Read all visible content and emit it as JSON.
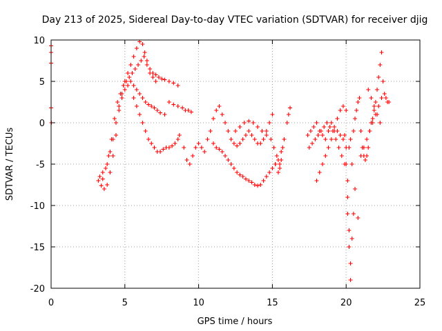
{
  "chart_data": {
    "type": "scatter",
    "title": "Day 213 of 2025, Sidereal Day-to-day VTEC variation (SDTVAR) for receiver djig",
    "xlabel": "GPS time / hours",
    "ylabel": "SDTVAR / TECUs",
    "xlim": [
      0,
      25
    ],
    "ylim": [
      -20,
      10
    ],
    "xticks": [
      0,
      5,
      10,
      15,
      20,
      25
    ],
    "yticks": [
      -20,
      -15,
      -10,
      -5,
      0,
      5,
      10
    ],
    "xtick_labels": [
      "0",
      "5",
      "10",
      "15",
      "20",
      "25"
    ],
    "ytick_labels": [
      "-20",
      "-15",
      "-10",
      "-5",
      "0",
      "5",
      "10"
    ],
    "grid": true,
    "marker": "+",
    "series_color": "#ff0000",
    "series": [
      {
        "name": "djig",
        "x": [
          0.0,
          0.0,
          0.0,
          0.0,
          0.02,
          3.2,
          3.4,
          3.6,
          3.8,
          4.0,
          4.2,
          4.4,
          4.6,
          4.8,
          5.0,
          5.2,
          5.4,
          5.6,
          5.8,
          6.0,
          6.2,
          6.35,
          6.5,
          6.7,
          6.9,
          7.1,
          7.3,
          7.5,
          7.7,
          8.0,
          8.3,
          8.6,
          3.3,
          3.5,
          3.7,
          3.9,
          4.1,
          4.3,
          4.5,
          4.7,
          4.9,
          5.1,
          5.3,
          5.5,
          5.7,
          5.9,
          6.1,
          6.3,
          6.5,
          6.7,
          6.9,
          7.1,
          3.5,
          3.8,
          4.0,
          4.2,
          4.4,
          4.6,
          4.8,
          5.0,
          5.2,
          5.4,
          5.6,
          5.8,
          6.0,
          6.2,
          6.4,
          6.6,
          6.8,
          7.0,
          7.2,
          7.4,
          7.7,
          8.0,
          8.3,
          8.6,
          8.9,
          9.1,
          9.3,
          9.5,
          5.6,
          5.8,
          6.0,
          6.2,
          6.4,
          6.6,
          6.8,
          7.0,
          7.2,
          7.4,
          7.6,
          7.8,
          8.0,
          8.2,
          8.4,
          8.6,
          8.7,
          9.0,
          9.2,
          9.4,
          9.6,
          9.8,
          10.0,
          10.2,
          10.4,
          10.6,
          10.8,
          11.0,
          11.2,
          11.4,
          11.6,
          11.8,
          12.0,
          12.2,
          12.4,
          12.6,
          12.8,
          13.0,
          13.2,
          13.4,
          13.6,
          13.8,
          14.0,
          14.2,
          14.4,
          14.6,
          14.8,
          15.0,
          15.2,
          15.4,
          15.5,
          15.6,
          15.7,
          15.8,
          11.0,
          11.2,
          11.4,
          11.6,
          11.8,
          12.0,
          12.2,
          12.4,
          12.6,
          12.8,
          13.0,
          13.2,
          13.4,
          13.6,
          13.8,
          14.0,
          14.2,
          14.4,
          14.6,
          14.8,
          15.0,
          15.2,
          15.4,
          15.6,
          15.8,
          16.0,
          16.1,
          16.2,
          12.5,
          12.8,
          13.1,
          13.4,
          13.7,
          14.0,
          14.3,
          14.6,
          14.9,
          15.1,
          15.3,
          15.5,
          17.4,
          17.6,
          17.8,
          18.0,
          18.2,
          18.4,
          18.6,
          18.8,
          19.0,
          19.2,
          19.4,
          19.6,
          19.8,
          17.5,
          17.7,
          17.9,
          18.1,
          18.3,
          18.5,
          18.7,
          18.9,
          19.1,
          19.3,
          19.5,
          19.7,
          19.9,
          18.0,
          18.2,
          18.4,
          18.6,
          18.8,
          19.0,
          19.2,
          19.4,
          19.6,
          19.8,
          20.0,
          19.9,
          20.0,
          20.0,
          20.1,
          20.1,
          20.1,
          20.2,
          20.2,
          20.3,
          20.3,
          20.4,
          20.5,
          20.3,
          20.5,
          20.6,
          20.7,
          20.8,
          20.9,
          21.0,
          21.1,
          21.2,
          21.3,
          21.4,
          21.5,
          21.6,
          21.7,
          21.8,
          21.9,
          22.0,
          22.1,
          22.2,
          22.3,
          22.4,
          22.5,
          22.6,
          22.7,
          22.8,
          22.9,
          21.0,
          21.2,
          21.4,
          21.6,
          21.8,
          22.0,
          22.2,
          22.4,
          21.5,
          21.7,
          21.9,
          22.1,
          22.3,
          20.8,
          20.6,
          20.4,
          20.2
        ],
        "y": [
          9.3,
          8.5,
          7.2,
          1.8,
          0.0,
          -7.0,
          -7.6,
          -8.0,
          -7.5,
          -6.0,
          -4.0,
          -1.5,
          1.5,
          3.5,
          5.0,
          6.0,
          7.0,
          8.0,
          9.0,
          9.8,
          9.5,
          8.5,
          7.5,
          6.5,
          6.0,
          5.8,
          5.5,
          5.3,
          5.2,
          5.0,
          4.8,
          4.5,
          -6.5,
          -6.8,
          -5.5,
          -4.0,
          -2.0,
          0.5,
          2.5,
          3.5,
          4.5,
          5.0,
          5.5,
          6.0,
          6.5,
          7.0,
          7.5,
          8.0,
          7.0,
          6.0,
          5.5,
          5.0,
          -6.0,
          -5.0,
          -3.5,
          -2.0,
          0.0,
          2.0,
          3.0,
          4.0,
          4.5,
          5.0,
          4.5,
          4.0,
          3.5,
          3.0,
          2.5,
          2.2,
          2.0,
          1.8,
          1.5,
          1.2,
          1.0,
          2.5,
          2.2,
          2.0,
          1.8,
          1.5,
          1.5,
          1.3,
          3.0,
          2.0,
          1.0,
          0.0,
          -1.0,
          -2.0,
          -2.5,
          -3.0,
          -3.5,
          -3.5,
          -3.2,
          -3.0,
          -3.0,
          -2.8,
          -2.5,
          -2.0,
          -1.5,
          -3.0,
          -4.5,
          -5.0,
          -4.0,
          -3.0,
          -2.5,
          -3.0,
          -3.5,
          -2.0,
          -1.0,
          0.5,
          1.5,
          2.0,
          1.0,
          0.0,
          -1.0,
          -2.0,
          -2.5,
          -2.8,
          -2.5,
          -2.0,
          -1.5,
          -1.0,
          -1.5,
          -2.0,
          -2.5,
          -2.5,
          -2.0,
          -1.0,
          0.0,
          1.0,
          -5.0,
          -6.0,
          -5.5,
          -4.5,
          -3.0,
          -2.0,
          -2.5,
          -3.0,
          -3.2,
          -3.5,
          -4.0,
          -4.5,
          -5.0,
          -5.5,
          -6.0,
          -6.3,
          -6.5,
          -6.8,
          -7.0,
          -7.2,
          -7.5,
          -7.6,
          -7.5,
          -7.0,
          -6.5,
          -6.0,
          -5.5,
          -5.0,
          -4.5,
          -3.5,
          -2.0,
          0.0,
          1.0,
          1.8,
          -1.0,
          -0.5,
          0.0,
          0.2,
          0.0,
          -0.5,
          -1.0,
          -1.5,
          -2.0,
          -3.0,
          -4.0,
          -5.0,
          -1.5,
          -1.0,
          -0.5,
          0.0,
          -1.0,
          -1.5,
          -2.0,
          -1.0,
          0.0,
          -0.5,
          -1.0,
          -1.5,
          -2.0,
          -3.0,
          -2.5,
          -2.0,
          -1.5,
          -1.0,
          -0.5,
          0.0,
          -0.5,
          -1.0,
          -2.0,
          -3.0,
          -4.0,
          -5.0,
          -7.0,
          -6.0,
          -5.0,
          -4.0,
          -3.0,
          -2.0,
          -1.0,
          0.5,
          1.5,
          2.0,
          1.5,
          -1.5,
          -3.0,
          -5.0,
          -7.0,
          -9.0,
          -11.0,
          -13.0,
          -15.0,
          -17.0,
          -19.0,
          -14.0,
          -11.0,
          -2.0,
          -1.0,
          0.5,
          1.5,
          2.5,
          3.0,
          -1.0,
          -3.0,
          -4.0,
          -4.5,
          -4.0,
          -3.0,
          -1.0,
          0.0,
          0.5,
          1.5,
          2.5,
          4.0,
          5.5,
          7.0,
          8.5,
          5.0,
          3.5,
          3.0,
          2.5,
          2.5,
          -4.0,
          -3.0,
          -2.0,
          -1.0,
          0.0,
          1.0,
          2.0,
          3.0,
          4.0,
          3.0,
          2.0,
          1.0,
          0.0,
          -11.5,
          -8.0,
          -5.0,
          -3.0
        ]
      }
    ]
  }
}
